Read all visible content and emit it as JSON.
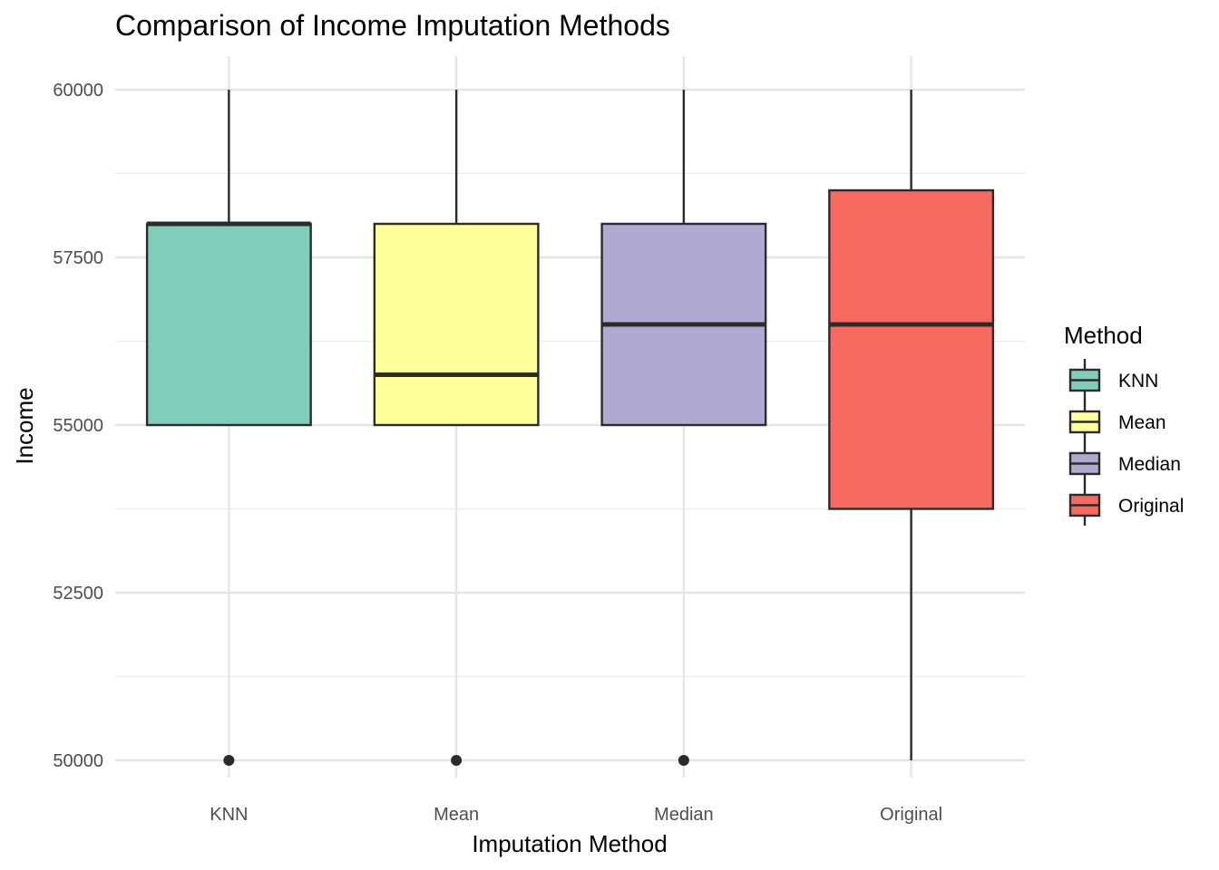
{
  "chart_data": {
    "type": "boxplot",
    "title": "Comparison of Income Imputation Methods",
    "xlabel": "Imputation Method",
    "ylabel": "Income",
    "ylim": [
      49500,
      60500
    ],
    "yticks": [
      50000,
      52500,
      55000,
      57500,
      60000
    ],
    "yticks_labels": [
      "50000",
      "52500",
      "55000",
      "57500",
      "60000"
    ],
    "minor_grid": [
      51250,
      53750,
      56250,
      58750
    ],
    "grid": true,
    "categories": [
      "KNN",
      "Mean",
      "Median",
      "Original"
    ],
    "boxes": [
      {
        "category": "KNN",
        "whisker_low": 55000,
        "q1": 55000,
        "median": 58000,
        "q3": 58000,
        "whisker_high": 60000,
        "outliers": [
          50000
        ],
        "color": "#7fcdbb"
      },
      {
        "category": "Mean",
        "whisker_low": 55000,
        "q1": 55000,
        "median": 55750,
        "q3": 58000,
        "whisker_high": 60000,
        "outliers": [
          50000
        ],
        "color": "#ffff99"
      },
      {
        "category": "Median",
        "whisker_low": 55000,
        "q1": 55000,
        "median": 56500,
        "q3": 58000,
        "whisker_high": 60000,
        "outliers": [
          50000
        ],
        "color": "#b0aad0"
      },
      {
        "category": "Original",
        "whisker_low": 50000,
        "q1": 53750,
        "median": 56500,
        "q3": 58500,
        "whisker_high": 60000,
        "outliers": [],
        "color": "#f8695f"
      }
    ],
    "legend": {
      "title": "Method",
      "position": "right",
      "entries": [
        {
          "label": "KNN",
          "color": "#7fcdbb"
        },
        {
          "label": "Mean",
          "color": "#ffff99"
        },
        {
          "label": "Median",
          "color": "#b0aad0"
        },
        {
          "label": "Original",
          "color": "#f8695f"
        }
      ]
    }
  }
}
